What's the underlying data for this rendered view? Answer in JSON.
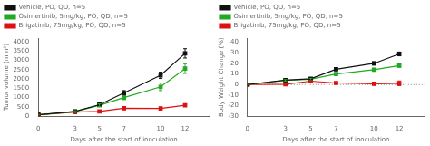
{
  "chart_data": [
    {
      "type": "line",
      "xlabel": "Days after the start of inoculation",
      "ylabel": "Tumor volume (mm³)",
      "x": [
        0,
        3,
        5,
        7,
        10,
        12
      ],
      "xlim": [
        0,
        14
      ],
      "xticks": [
        0,
        3,
        5,
        7,
        10,
        12
      ],
      "ylim": [
        0,
        4200
      ],
      "yticks": [
        0,
        500,
        1000,
        1500,
        2000,
        2500,
        3000,
        3500,
        4000
      ],
      "grid": false,
      "legend": "upper left",
      "marker": "square",
      "line_style": "solid",
      "series": [
        {
          "name": "Vehicle, PO, QD, n=5",
          "color": "#111111",
          "values": [
            80,
            260,
            620,
            1250,
            2200,
            3380
          ],
          "yerr": [
            15,
            40,
            80,
            130,
            170,
            250
          ]
        },
        {
          "name": "Osimertinib, 5mg/kg, PO, QD, n=5",
          "color": "#22aa22",
          "values": [
            80,
            250,
            590,
            1000,
            1580,
            2560
          ],
          "yerr": [
            15,
            45,
            70,
            110,
            200,
            260
          ]
        },
        {
          "name": "Brigatinib, 75mg/kg, PO, QD, n=5",
          "color": "#dd1111",
          "values": [
            80,
            220,
            260,
            430,
            420,
            590
          ],
          "yerr": [
            15,
            25,
            45,
            55,
            45,
            65
          ]
        }
      ]
    },
    {
      "type": "line",
      "xlabel": "Days after the start of inoculation",
      "ylabel": "Body Weight Change (%)",
      "x": [
        0,
        3,
        5,
        7,
        10,
        12
      ],
      "xlim": [
        0,
        14
      ],
      "xticks": [
        0,
        3,
        5,
        7,
        10,
        12
      ],
      "ylim": [
        -30,
        44
      ],
      "yticks": [
        -30,
        -20,
        -10,
        0,
        10,
        20,
        30,
        40
      ],
      "grid": false,
      "legend": "upper left",
      "marker": "square",
      "line_style": "solid",
      "hline": {
        "y": 0,
        "color": "#888888",
        "line_style": "dotted"
      },
      "series": [
        {
          "name": "Vehicle, PO, QD, n=5",
          "color": "#111111",
          "values": [
            0,
            4.2,
            5.5,
            14.5,
            20.0,
            29.0
          ],
          "yerr": [
            0.0,
            0.8,
            1.0,
            1.2,
            1.5,
            1.8
          ]
        },
        {
          "name": "Osimertinib, 5mg/kg, PO, QD, n=5",
          "color": "#22aa22",
          "values": [
            0,
            4.0,
            5.0,
            10.0,
            14.0,
            18.0
          ],
          "yerr": [
            0.0,
            0.7,
            0.9,
            1.0,
            1.3,
            1.5
          ]
        },
        {
          "name": "Brigatinib, 75mg/kg, PO, QD, n=5",
          "color": "#dd1111",
          "values": [
            0,
            0.4,
            3.2,
            1.5,
            0.8,
            1.2
          ],
          "yerr": [
            0.0,
            0.4,
            0.7,
            0.7,
            1.3,
            2.2
          ]
        }
      ]
    }
  ]
}
